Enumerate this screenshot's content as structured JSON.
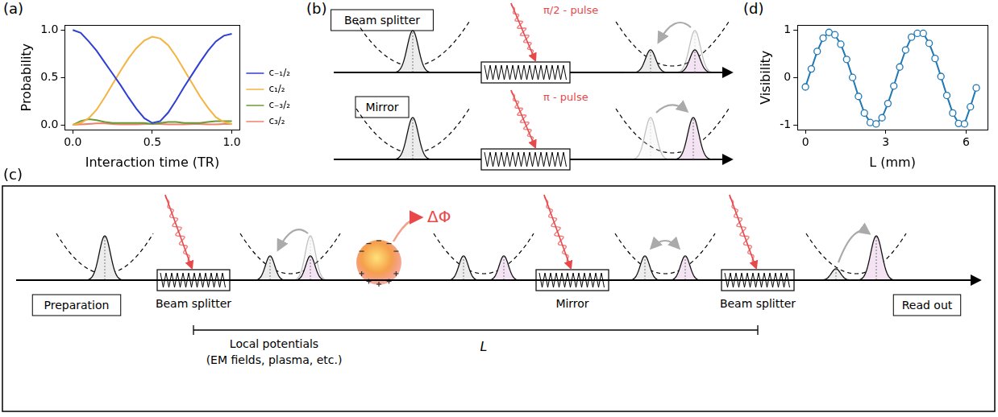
{
  "chart_data": [
    {
      "panel": "(a)",
      "type": "line",
      "x_label": "Interaction time (TR)",
      "y_label": "Probability",
      "x": [
        0,
        0.05,
        0.1,
        0.15,
        0.2,
        0.25,
        0.3,
        0.35,
        0.4,
        0.45,
        0.5,
        0.55,
        0.6,
        0.65,
        0.7,
        0.75,
        0.8,
        0.85,
        0.9,
        0.95,
        1.0
      ],
      "series": [
        {
          "name": "c₋₁/₂",
          "color": "#2f3fd6",
          "values": [
            1.0,
            0.97,
            0.88,
            0.78,
            0.66,
            0.54,
            0.42,
            0.29,
            0.17,
            0.07,
            0.02,
            0.04,
            0.13,
            0.26,
            0.4,
            0.53,
            0.66,
            0.78,
            0.88,
            0.94,
            0.96
          ]
        },
        {
          "name": "c₁/₂",
          "color": "#f5b342",
          "values": [
            0,
            0.02,
            0.07,
            0.16,
            0.29,
            0.43,
            0.57,
            0.7,
            0.81,
            0.89,
            0.93,
            0.91,
            0.84,
            0.72,
            0.58,
            0.44,
            0.3,
            0.18,
            0.08,
            0.03,
            0.01
          ]
        },
        {
          "name": "c₋₃/₂",
          "color": "#6b9b37",
          "values": [
            0,
            0.04,
            0.06,
            0.05,
            0.03,
            0.02,
            0.02,
            0.02,
            0.02,
            0.02,
            0.01,
            0.02,
            0.03,
            0.03,
            0.02,
            0.02,
            0.02,
            0.03,
            0.04,
            0.04,
            0.04
          ]
        },
        {
          "name": "c₃/₂",
          "color": "#f07f6a",
          "values": [
            0,
            0.005,
            0.01,
            0.015,
            0.015,
            0.01,
            0.005,
            0.005,
            0.005,
            0.01,
            0.01,
            0.01,
            0.005,
            0.005,
            0.005,
            0.01,
            0.01,
            0.005,
            0.005,
            0.01,
            0.01
          ]
        }
      ],
      "xlim": [
        -0.05,
        1.05
      ],
      "ylim": [
        -0.05,
        1.05
      ],
      "xticks": [
        {
          "value": 0,
          "label": "0.0"
        },
        {
          "value": 0.5,
          "label": "0.5"
        },
        {
          "value": 1,
          "label": "1.0"
        }
      ],
      "yticks": [
        {
          "value": 0,
          "label": "0.0"
        },
        {
          "value": 0.5,
          "label": "0.5"
        },
        {
          "value": 1,
          "label": "1.0"
        }
      ],
      "grid": false,
      "legend": "right",
      "marker": "none"
    },
    {
      "panel": "(d)",
      "type": "line",
      "x_label": "L (mm)",
      "y_label": "Visibility",
      "x": [
        0,
        0.22,
        0.44,
        0.66,
        0.88,
        1.1,
        1.32,
        1.54,
        1.76,
        1.98,
        2.2,
        2.42,
        2.64,
        2.86,
        3.08,
        3.3,
        3.52,
        3.74,
        3.96,
        4.18,
        4.4,
        4.62,
        4.84,
        5.06,
        5.28,
        5.5,
        5.72,
        5.94,
        6.16,
        6.38
      ],
      "values": [
        -0.2,
        0.18,
        0.55,
        0.83,
        0.95,
        0.9,
        0.7,
        0.38,
        0.0,
        -0.4,
        -0.75,
        -0.95,
        -0.98,
        -0.85,
        -0.55,
        -0.18,
        0.22,
        0.58,
        0.85,
        0.93,
        0.93,
        0.72,
        0.4,
        0.02,
        -0.38,
        -0.75,
        -0.97,
        -0.98,
        -0.62,
        -0.22
      ],
      "color": "#1f77b4",
      "marker": "circle",
      "xlim": [
        -0.3,
        6.8
      ],
      "ylim": [
        -1.1,
        1.1
      ],
      "xticks": [
        0,
        3,
        6
      ],
      "yticks": [
        -1,
        0,
        1
      ],
      "grid": false
    }
  ],
  "diagram": {
    "panel_b": {
      "label": "(b)",
      "rows": [
        {
          "title": "Beam splitter",
          "pulse": "π/2 - pulse"
        },
        {
          "title": "Mirror",
          "pulse": "π - pulse"
        }
      ]
    },
    "panel_c": {
      "label": "(c)",
      "stages": {
        "preparation": "Preparation",
        "splitter_1": "Beam splitter",
        "mirror": "Mirror",
        "splitter_2": "Beam splitter",
        "readout": "Read out"
      },
      "region": [
        "Local potentials",
        "(EM fields, plasma, etc.)"
      ],
      "length": "L",
      "phase": "ΔΦ"
    }
  }
}
